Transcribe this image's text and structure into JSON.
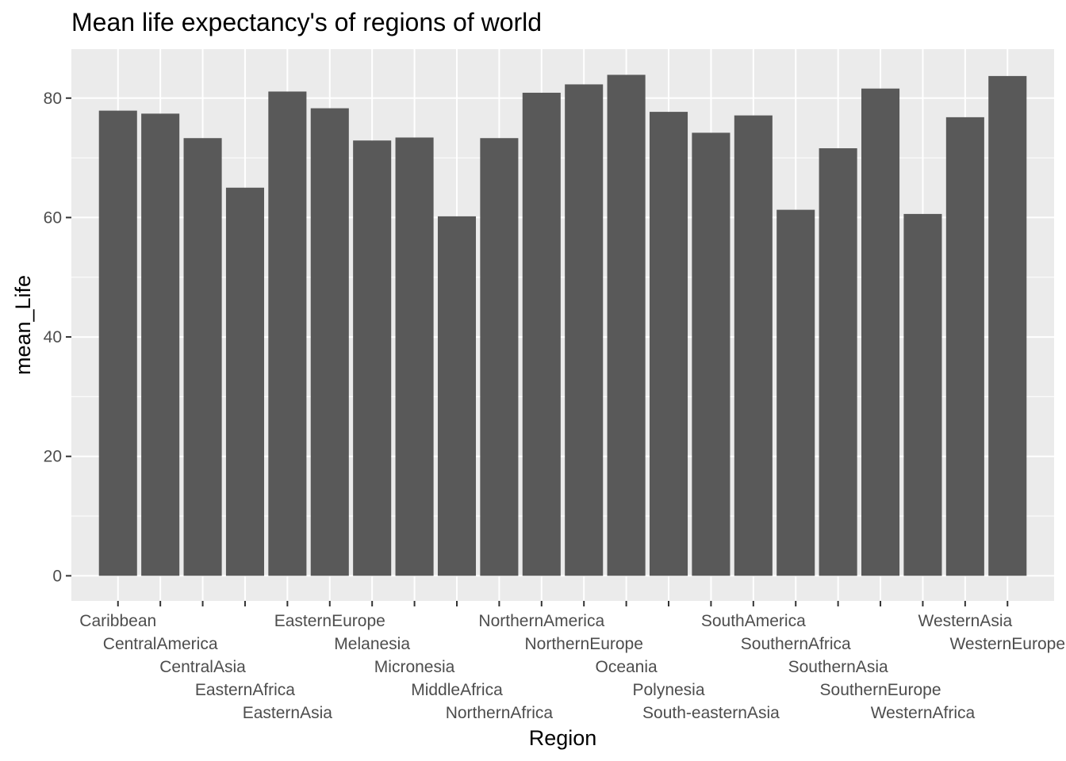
{
  "chart_data": {
    "type": "bar",
    "title": "Mean life expectancy's of regions of world",
    "xlabel": "Region",
    "ylabel": "mean_Life",
    "ylim": [
      -4.2,
      88.2
    ],
    "yticks": [
      0,
      20,
      40,
      60,
      80
    ],
    "grid": true,
    "bar_color": "#595959",
    "panel_color": "#ebebeb",
    "categories": [
      "Caribbean",
      "CentralAmerica",
      "CentralAsia",
      "EasternAfrica",
      "EasternAsia",
      "EasternEurope",
      "Melanesia",
      "Micronesia",
      "MiddleAfrica",
      "NorthernAfrica",
      "NorthernAmerica",
      "NorthernEurope",
      "Oceania",
      "Polynesia",
      "South-easternAsia",
      "SouthAmerica",
      "SouthernAfrica",
      "SouthernAsia",
      "SouthernEurope",
      "WesternAfrica",
      "WesternAsia",
      "WesternEurope"
    ],
    "values": [
      77.9,
      77.4,
      73.3,
      65.0,
      81.1,
      78.3,
      72.9,
      73.4,
      60.2,
      73.3,
      80.9,
      82.3,
      83.9,
      77.7,
      74.2,
      77.1,
      61.3,
      71.6,
      81.6,
      60.6,
      76.8,
      83.7
    ]
  }
}
